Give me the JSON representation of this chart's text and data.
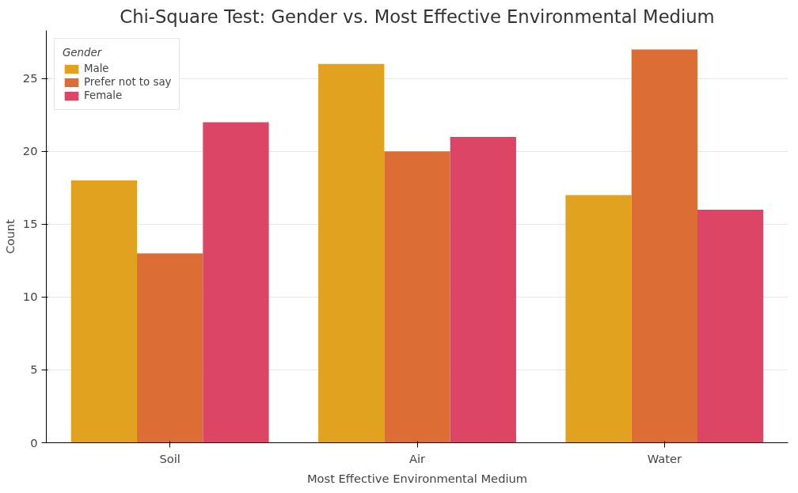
{
  "chart_data": {
    "type": "bar",
    "title": "Chi-Square Test: Gender vs. Most Effective Environmental Medium",
    "xlabel": "Most Effective Environmental Medium",
    "ylabel": "Count",
    "legend_title": "Gender",
    "categories": [
      "Soil",
      "Air",
      "Water"
    ],
    "series": [
      {
        "name": "Male",
        "color": "#e0a21f",
        "values": [
          18,
          26,
          17
        ]
      },
      {
        "name": "Prefer not to say",
        "color": "#dc6e35",
        "values": [
          13,
          20,
          27
        ]
      },
      {
        "name": "Female",
        "color": "#dc4566",
        "values": [
          22,
          21,
          16
        ]
      }
    ],
    "ylim": [
      0,
      28.3
    ],
    "yticks": [
      0,
      5,
      10,
      15,
      20,
      25
    ],
    "grid": "y",
    "legend": "top left"
  }
}
